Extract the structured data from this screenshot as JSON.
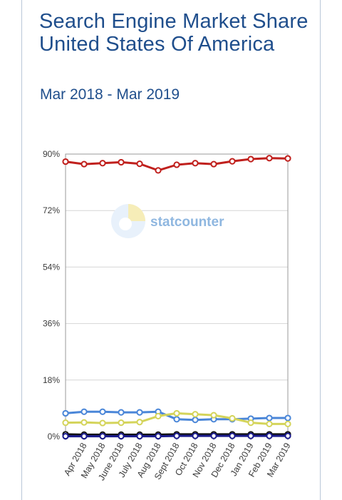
{
  "header": {
    "title": "Search Engine Market Share United States Of America",
    "subtitle": "Mar 2018 - Mar 2019"
  },
  "watermark": {
    "text": "statcounter"
  },
  "chart_data": {
    "type": "line",
    "title": "Search Engine Market Share United States Of America",
    "subtitle": "Mar 2018 - Mar 2019",
    "xlabel": "",
    "ylabel": "",
    "ylim": [
      0,
      90
    ],
    "yticks": [
      "0%",
      "18%",
      "36%",
      "54%",
      "72%",
      "90%"
    ],
    "ytick_values": [
      0,
      18,
      36,
      54,
      72,
      90
    ],
    "categories": [
      "",
      "Apr 2018",
      "May 2018",
      "June 2018",
      "July 2018",
      "Aug 2018",
      "Sept 2018",
      "Oct 2018",
      "Nov 2018",
      "Dec 2018",
      "Jan 2019",
      "Feb 2019",
      "Mar 2019"
    ],
    "grid": true,
    "legend": "none",
    "series": [
      {
        "color": "#c0201d",
        "values": [
          87.6,
          86.8,
          87.1,
          87.4,
          86.9,
          84.8,
          86.6,
          87.1,
          86.8,
          87.7,
          88.4,
          88.7,
          88.6
        ]
      },
      {
        "color": "#4a86d8",
        "values": [
          7.4,
          7.9,
          7.9,
          7.7,
          7.7,
          7.9,
          5.5,
          5.3,
          5.5,
          5.5,
          5.7,
          5.9,
          5.9
        ]
      },
      {
        "color": "#d4d45a",
        "values": [
          4.4,
          4.5,
          4.3,
          4.4,
          4.6,
          6.5,
          7.4,
          7.1,
          6.8,
          5.8,
          4.4,
          4.0,
          4.0
        ]
      },
      {
        "color": "#111111",
        "values": [
          0.7,
          0.6,
          0.6,
          0.6,
          0.6,
          0.6,
          0.7,
          0.7,
          0.7,
          0.7,
          0.7,
          0.7,
          0.7
        ]
      },
      {
        "color": "#1a1a8c",
        "values": [
          0.1,
          0.1,
          0.1,
          0.1,
          0.1,
          0.1,
          0.2,
          0.2,
          0.2,
          0.2,
          0.2,
          0.2,
          0.2
        ]
      }
    ]
  }
}
